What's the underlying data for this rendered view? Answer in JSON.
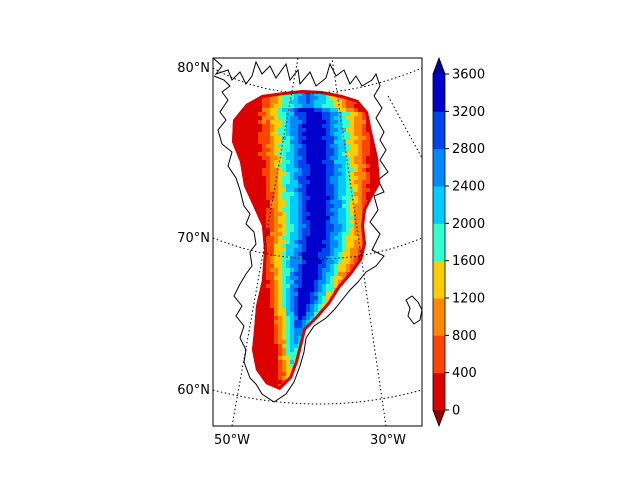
{
  "map": {
    "lat_labels": [
      "80°N",
      "70°N",
      "60°N"
    ],
    "lon_labels": [
      "50°W",
      "30°W"
    ]
  },
  "colorbar": {
    "ticks": [
      "3600",
      "3200",
      "2800",
      "2400",
      "2000",
      "1600",
      "1200",
      "800",
      "400",
      "0"
    ],
    "levels": [
      0,
      400,
      800,
      1200,
      1600,
      2000,
      2400,
      2800,
      3200,
      3600
    ],
    "colors": [
      "#dd0000",
      "#ff4400",
      "#ff8800",
      "#ffcc00",
      "#33ffcc",
      "#00ccff",
      "#0088ff",
      "#0044ee",
      "#0000cc"
    ],
    "under_color": "#990000",
    "over_color": "#000099",
    "extend": "both"
  },
  "chart_data": {
    "type": "heatmap",
    "region": "Greenland",
    "projection": "polar stereographic",
    "value_range": [
      0,
      3600
    ],
    "colorbar_ticks": [
      0,
      400,
      800,
      1200,
      1600,
      2000,
      2400,
      2800,
      3200,
      3600
    ],
    "colorbar_extend": "both",
    "colormap": "jet (reversed)",
    "graticule": {
      "style": "dotted",
      "lat_lines": [
        60,
        70,
        80
      ],
      "lon_lines": [
        -50,
        -30
      ]
    }
  }
}
